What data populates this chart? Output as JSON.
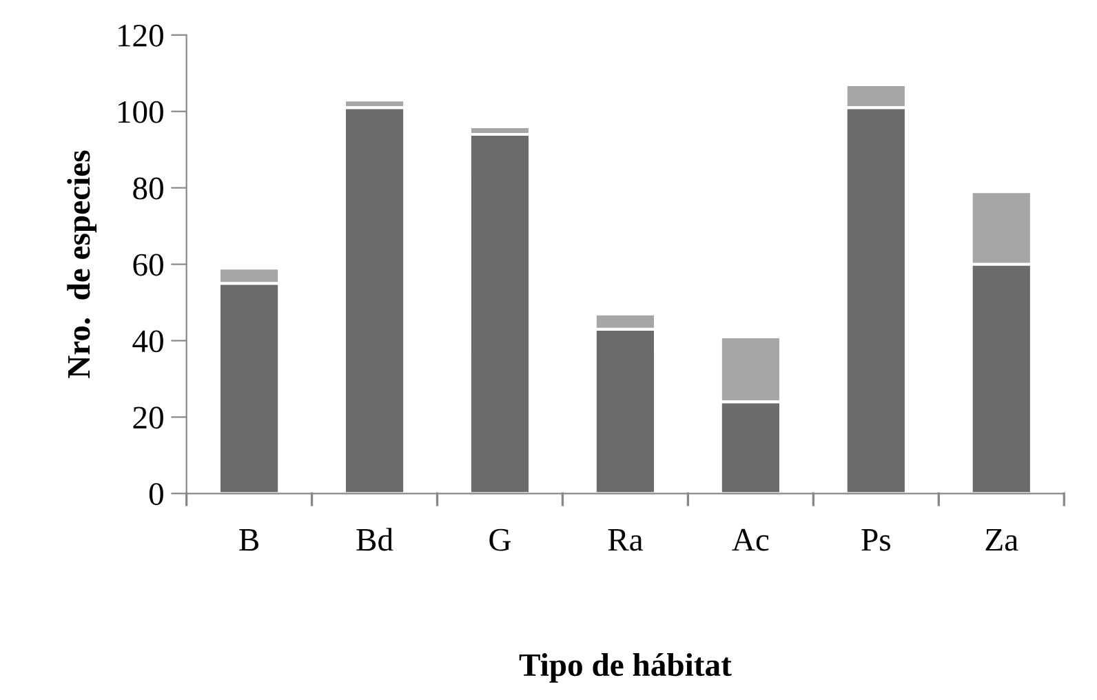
{
  "chart_data": {
    "type": "bar",
    "stacked": true,
    "xlabel": "Tipo de hábitat",
    "ylabel": "Nro.  de especies",
    "categories": [
      "B",
      "Bd",
      "G",
      "Ra",
      "Ac",
      "Ps",
      "Za"
    ],
    "series": [
      {
        "color": "#6b6b6b",
        "values": [
          55,
          101,
          94,
          43,
          24,
          101,
          60
        ]
      },
      {
        "color": "#a6a6a6",
        "values": [
          4,
          2,
          2,
          4,
          17,
          6,
          19
        ]
      }
    ],
    "ylim": [
      0,
      120
    ],
    "yticks": [
      0,
      20,
      40,
      60,
      80,
      100,
      120
    ],
    "grid": false,
    "legend": false
  }
}
